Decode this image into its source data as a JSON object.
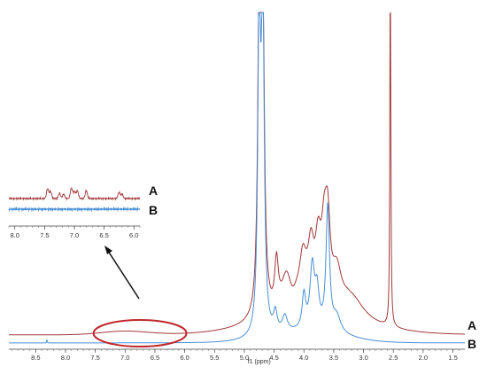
{
  "chart_data": [
    {
      "type": "line",
      "title": "",
      "xlabel": "f1 (ppm)",
      "ylabel": "",
      "x_reversed": true,
      "xlim": [
        8.95,
        1.3
      ],
      "xticks": [
        "8.5",
        "8.0",
        "7.5",
        "7.0",
        "6.5",
        "6.0",
        "5.5",
        "5.0",
        "4.5",
        "4.0",
        "3.5",
        "3.0",
        "2.5",
        "2.0",
        "1.5"
      ],
      "grid": false,
      "legend": "trace labels at right end",
      "series": [
        {
          "name": "A",
          "color": "#a03a3a",
          "peaks_ppm": [
            4.75,
            4.69,
            4.45,
            3.85,
            3.7,
            3.6,
            2.55
          ],
          "relative_intensity": [
            1.0,
            1.0,
            0.48,
            0.75,
            0.79,
            0.88,
            1.0
          ]
        },
        {
          "name": "B",
          "color": "#4a8fd6",
          "peaks_ppm": [
            4.75,
            4.69,
            4.45,
            4.0,
            3.85,
            3.6
          ],
          "relative_intensity": [
            1.0,
            1.0,
            0.27,
            0.25,
            0.48,
            0.61
          ]
        }
      ],
      "annotations": {
        "highlight_region_ppm": [
          7.5,
          6.0
        ],
        "highlight_color": "#c0282d"
      }
    },
    {
      "type": "line",
      "title": "inset",
      "xlabel": "",
      "x_reversed": true,
      "xlim": [
        8.1,
        5.9
      ],
      "xticks": [
        "8.0",
        "7.5",
        "7.0",
        "6.5",
        "6.0"
      ],
      "series": [
        {
          "name": "A",
          "color": "#a03a3a",
          "peaks_ppm": [
            7.45,
            7.25,
            7.05,
            6.95,
            6.8,
            6.25
          ]
        },
        {
          "name": "B",
          "color": "#4a8fd6",
          "peaks_ppm": []
        }
      ]
    }
  ]
}
